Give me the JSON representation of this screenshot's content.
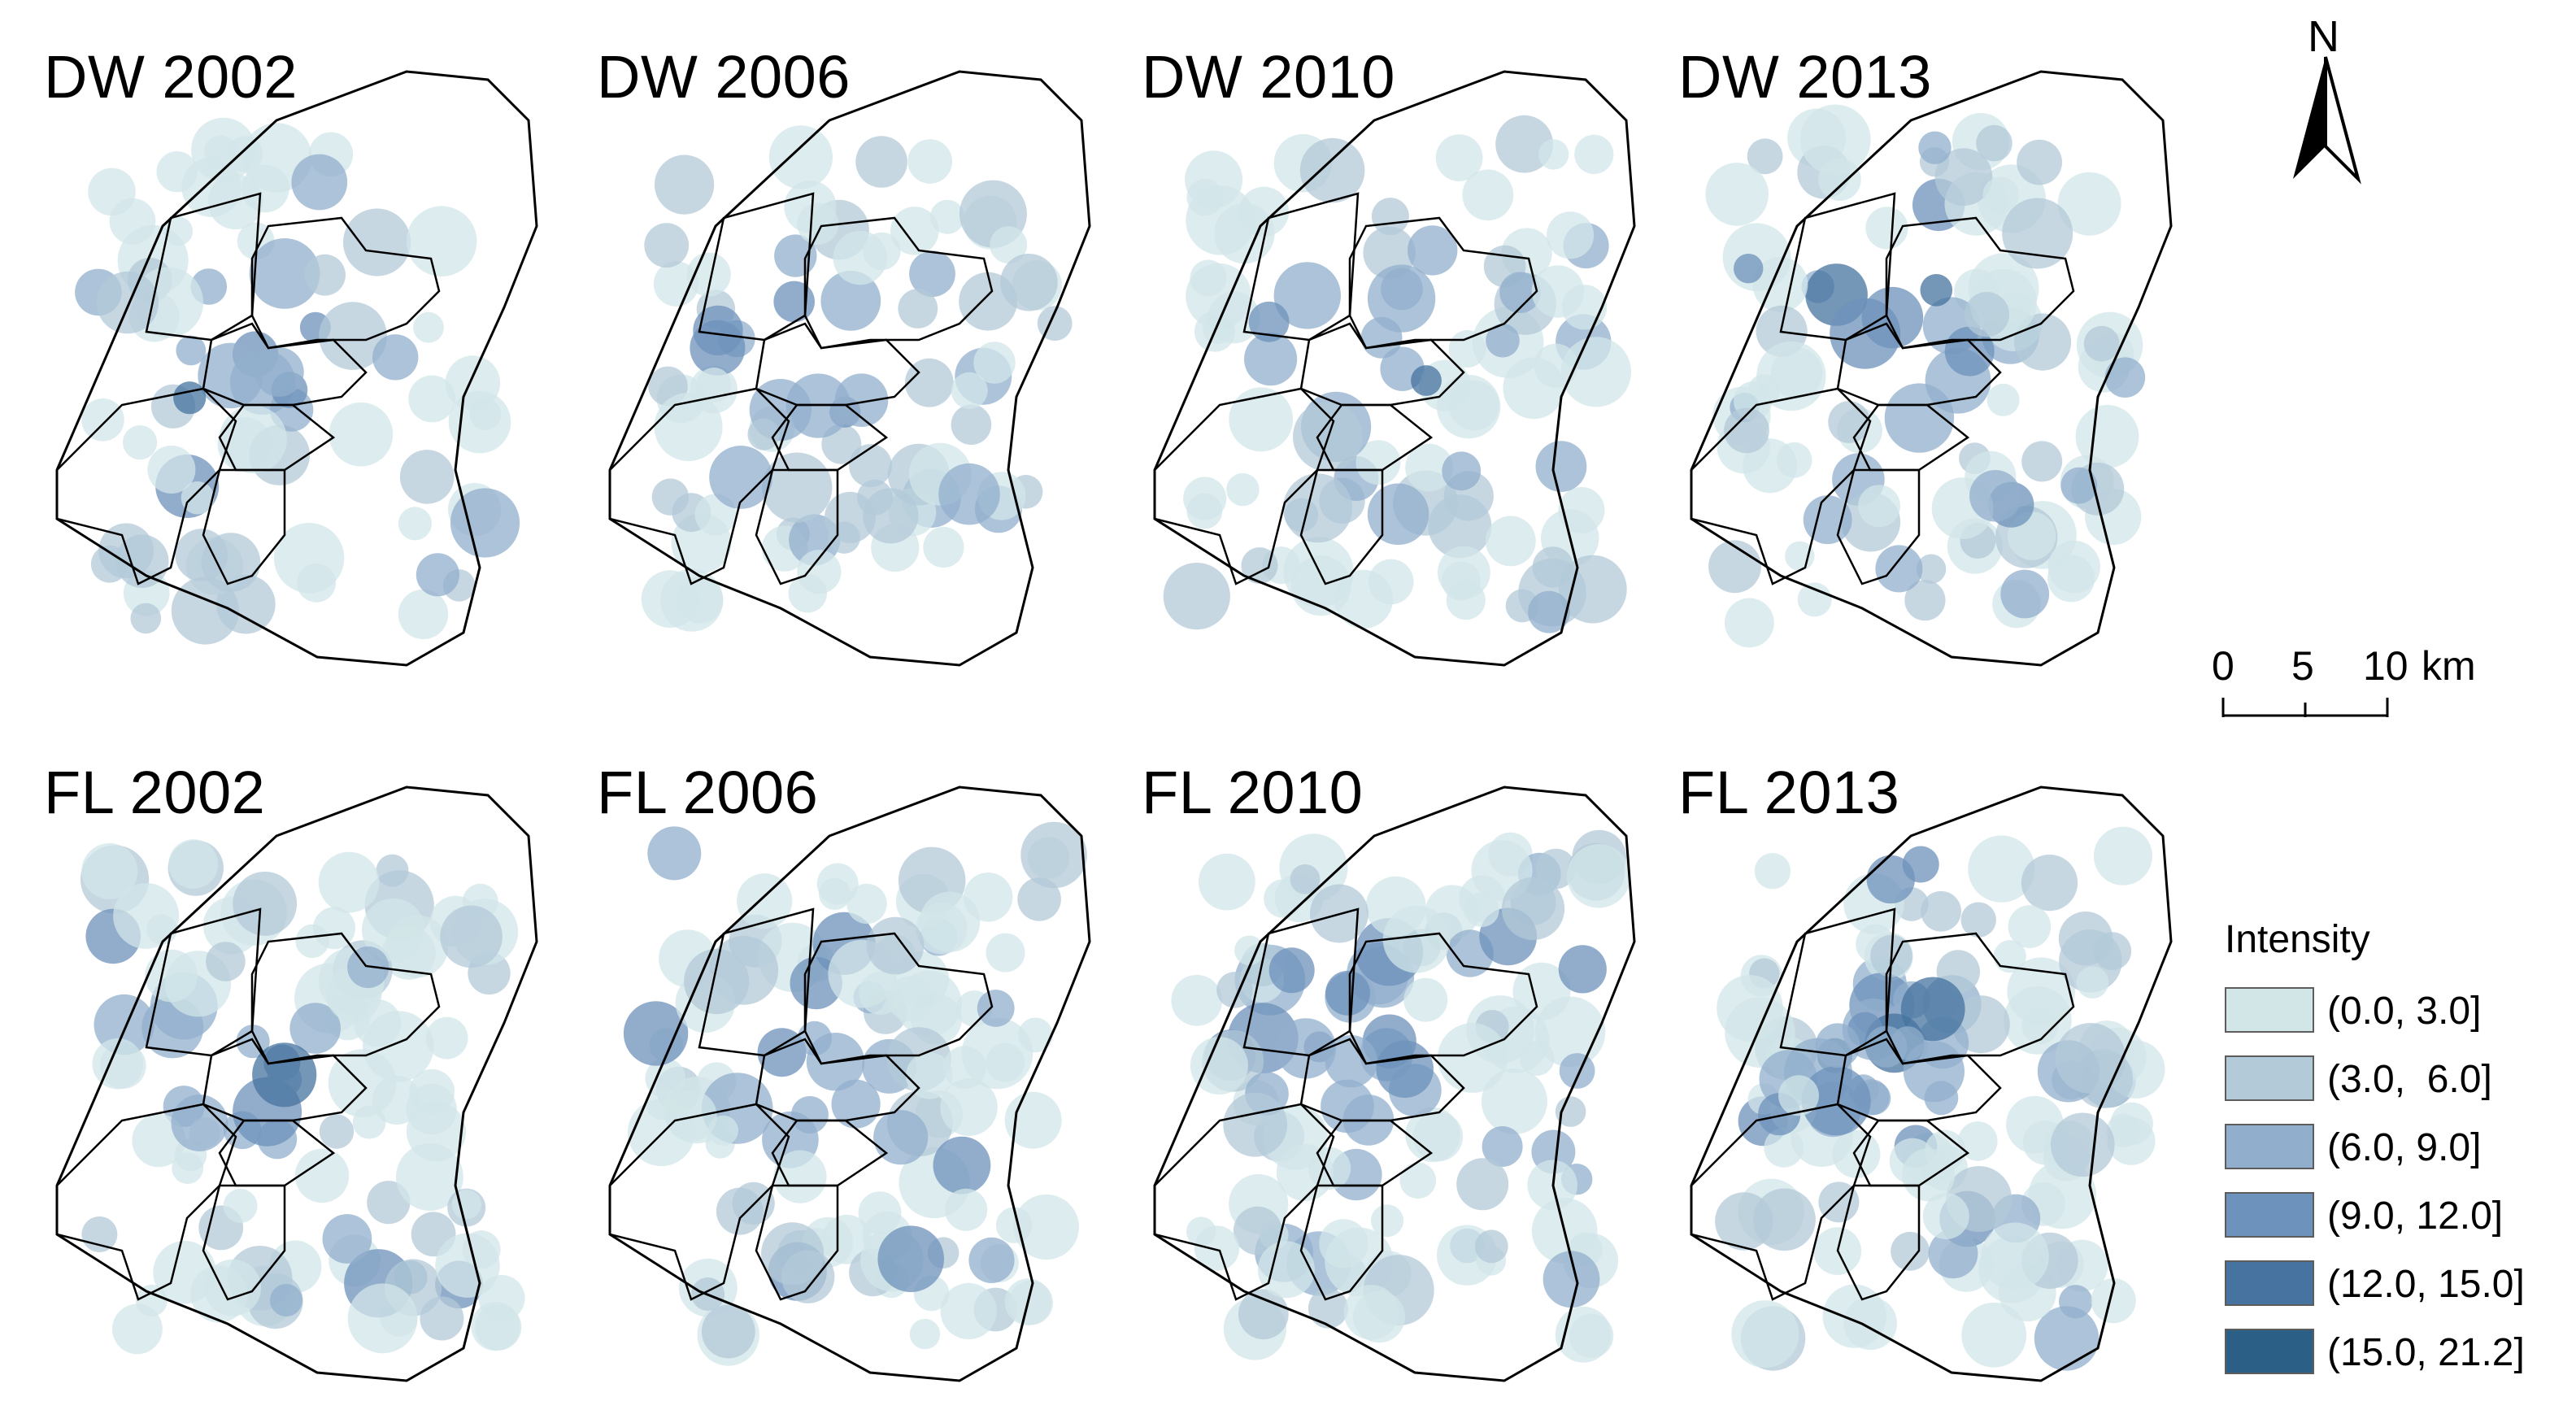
{
  "panels": [
    {
      "title": "DW 2002"
    },
    {
      "title": "DW 2006"
    },
    {
      "title": "DW 2010"
    },
    {
      "title": "DW 2013"
    },
    {
      "title": "FL 2002"
    },
    {
      "title": "FL 2006"
    },
    {
      "title": "FL 2010"
    },
    {
      "title": "FL 2013"
    }
  ],
  "north_arrow": {
    "label": "N"
  },
  "scale_bar": {
    "ticks": [
      "0",
      "5",
      "10"
    ],
    "unit": "km"
  },
  "legend": {
    "title": "Intensity",
    "classes": [
      {
        "label": "(0.0, 3.0]",
        "color": "#d2e6e8"
      },
      {
        "label": "(3.0,  6.0]",
        "color": "#b3cad8"
      },
      {
        "label": "(6.0, 9.0]",
        "color": "#91afcc"
      },
      {
        "label": "(9.0, 12.0]",
        "color": "#6d92bb"
      },
      {
        "label": "(12.0, 15.0]",
        "color": "#46739f"
      },
      {
        "label": "(15.0, 21.2]",
        "color": "#2c5f86"
      }
    ]
  }
}
